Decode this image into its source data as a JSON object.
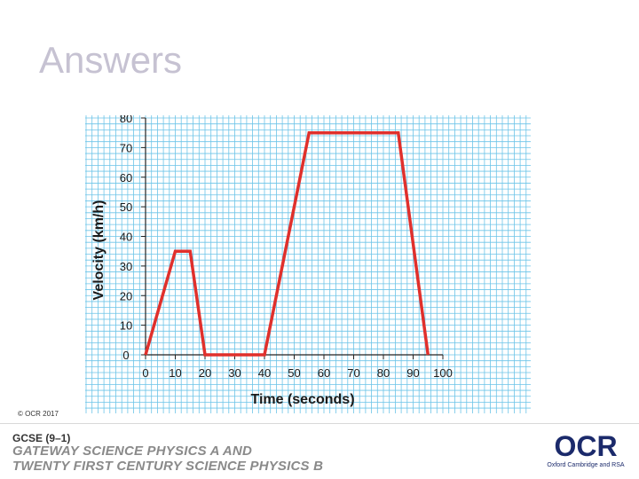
{
  "slide": {
    "title": "Answers"
  },
  "footer": {
    "copyright": "© OCR 2017",
    "qualification": "GCSE (9–1)",
    "course_line1": "GATEWAY SCIENCE PHYSICS A AND",
    "course_line2": "TWENTY FIRST CENTURY SCIENCE PHYSICS B",
    "logo_text": "OCR",
    "logo_tagline": "Oxford Cambridge and RSA"
  },
  "colors": {
    "grid": "#6cc4e8",
    "line": "#e0302c",
    "title": "#c6c2d2",
    "logo": "#1b2a6b"
  },
  "chart_data": {
    "type": "line",
    "title": "",
    "xlabel": "Time (seconds)",
    "ylabel": "Velocity (km/h)",
    "xlim": [
      0,
      100
    ],
    "ylim": [
      0,
      80
    ],
    "xticks": [
      0,
      10,
      20,
      30,
      40,
      50,
      60,
      70,
      80,
      90,
      100
    ],
    "yticks": [
      0,
      10,
      20,
      30,
      40,
      50,
      60,
      70,
      80
    ],
    "grid": true,
    "series": [
      {
        "x": [
          0,
          10,
          15,
          20,
          40,
          55,
          85,
          95
        ],
        "y": [
          0,
          35,
          35,
          0,
          0,
          75,
          75,
          0
        ]
      }
    ]
  }
}
